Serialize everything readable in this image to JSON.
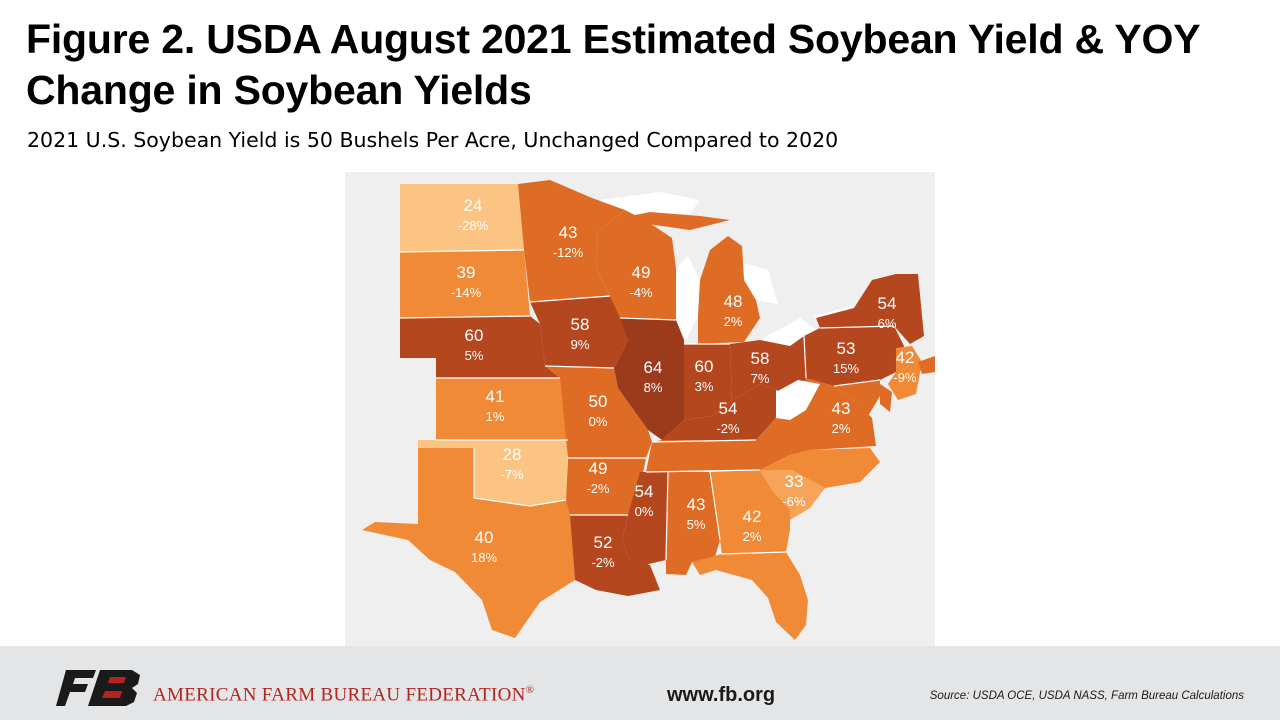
{
  "title": "Figure 2. USDA August 2021 Estimated Soybean Yield & YOY Change in Soybean Yields",
  "subtitle": "2021 U.S. Soybean Yield is 50 Bushels Per Acre, Unchanged Compared to 2020",
  "colors": {
    "darkest": "#9c3a1c",
    "dark": "#b5471f",
    "mid": "#df6c24",
    "orange": "#f08a36",
    "light": "#f5a45a",
    "lightest": "#fbc483",
    "footer_bg": "#e4e5e7",
    "brand_red": "#b32420"
  },
  "states": [
    {
      "id": "ND",
      "yield": "24",
      "change": "-28%"
    },
    {
      "id": "SD",
      "yield": "39",
      "change": "-14%"
    },
    {
      "id": "NE",
      "yield": "60",
      "change": "5%"
    },
    {
      "id": "KS",
      "yield": "41",
      "change": "1%"
    },
    {
      "id": "OK",
      "yield": "28",
      "change": "-7%"
    },
    {
      "id": "TX",
      "yield": "40",
      "change": "18%"
    },
    {
      "id": "MN",
      "yield": "43",
      "change": "-12%"
    },
    {
      "id": "IA",
      "yield": "58",
      "change": "9%"
    },
    {
      "id": "MO",
      "yield": "50",
      "change": "0%"
    },
    {
      "id": "AR",
      "yield": "49",
      "change": "-2%"
    },
    {
      "id": "LA",
      "yield": "52",
      "change": "-2%"
    },
    {
      "id": "WI",
      "yield": "49",
      "change": "-4%"
    },
    {
      "id": "IL",
      "yield": "64",
      "change": "8%"
    },
    {
      "id": "MS",
      "yield": "54",
      "change": "0%"
    },
    {
      "id": "MI",
      "yield": "48",
      "change": "2%"
    },
    {
      "id": "IN",
      "yield": "60",
      "change": "3%"
    },
    {
      "id": "KY",
      "yield": "54",
      "change": "-2%"
    },
    {
      "id": "OH",
      "yield": "58",
      "change": "7%"
    },
    {
      "id": "AL",
      "yield": "43",
      "change": "5%"
    },
    {
      "id": "GA",
      "yield": "42",
      "change": "2%"
    },
    {
      "id": "SC",
      "yield": "33",
      "change": "-6%"
    },
    {
      "id": "VA",
      "yield": "43",
      "change": "2%"
    },
    {
      "id": "PA",
      "yield": "53",
      "change": "15%"
    },
    {
      "id": "NY",
      "yield": "54",
      "change": "6%"
    },
    {
      "id": "NJ",
      "yield": "42",
      "change": "-9%"
    }
  ],
  "footer": {
    "logo_icon": "fb-logo-icon",
    "org_name": "AMERICAN FARM BUREAU FEDERATION",
    "registered_mark": "®",
    "website": "www.fb.org",
    "source": "Source: USDA OCE, USDA NASS, Farm Bureau Calculations"
  }
}
